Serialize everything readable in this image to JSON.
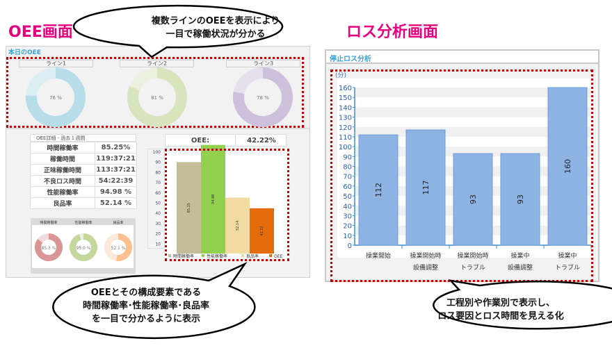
{
  "headings": {
    "left": "OEE画面",
    "right": "ロス分析画面"
  },
  "oee_screen": {
    "today_label": "本日のOEE",
    "lines": [
      {
        "name": "ライン1",
        "value": 76,
        "label": "76 %",
        "color": "#b6dde8",
        "light": "#dbeef4"
      },
      {
        "name": "ライン2",
        "value": 81,
        "label": "81 %",
        "color": "#d7e4bd",
        "light": "#ebf1de"
      },
      {
        "name": "ライン3",
        "value": 78,
        "label": "78 %",
        "color": "#ccc0da",
        "light": "#e6e0ec"
      }
    ],
    "detail_title": "OEE詳細 - 過去１週間",
    "detail_rows": [
      {
        "label": "時間稼働率",
        "value": "85.25%"
      },
      {
        "label": "稼働時間",
        "value": "119:37:21"
      },
      {
        "label": "正味稼働時間",
        "value": "113:37:21"
      },
      {
        "label": "不良ロス時間",
        "value": "54:22:39"
      },
      {
        "label": "性能稼働率",
        "value": "94.98 %"
      },
      {
        "label": "良品率",
        "value": "52.14 %"
      }
    ],
    "oee_label": "OEE:",
    "oee_value": "42.22%",
    "small_donuts": [
      {
        "name": "時間稼働率",
        "value": 85.3,
        "label": "85.3 %",
        "color": "#d99694",
        "light": "#f2dcdb"
      },
      {
        "name": "性能稼働率",
        "value": 95.0,
        "label": "95.0 %",
        "color": "#c3d69b",
        "light": "#ebf1de"
      },
      {
        "name": "良品率",
        "value": 52.1,
        "label": "52.1 %",
        "color": "#fac090",
        "light": "#fde9d9"
      }
    ]
  },
  "chart_data": [
    {
      "type": "bar",
      "categories": [
        "時間稼働率",
        "性能稼働率",
        "良品率",
        "OEE"
      ],
      "values": [
        85.25,
        94.98,
        52.14,
        42.22
      ],
      "data_labels": [
        "85.25",
        "94.98",
        "52.14",
        "42.22"
      ],
      "colors": [
        "#c4bd97",
        "#92d050",
        "#f0dca0",
        "#e46c0a"
      ],
      "yticks": [
        10,
        20,
        30,
        40,
        50,
        60,
        70,
        80,
        90,
        100
      ],
      "ylim": [
        0,
        100
      ],
      "legend": "bottom"
    },
    {
      "type": "bar",
      "title": "停止ロス分析",
      "ylabel": "(分)",
      "categories": [
        [
          "操業開始",
          ""
        ],
        [
          "操業開始時",
          "設備調整"
        ],
        [
          "操業開始時",
          "トラブル"
        ],
        [
          "操業中",
          "設備調整"
        ],
        [
          "操業中",
          "トラブル"
        ]
      ],
      "values": [
        112,
        117,
        93,
        93,
        160
      ],
      "yticks": [
        0,
        10,
        20,
        30,
        40,
        50,
        60,
        70,
        80,
        90,
        100,
        110,
        120,
        130,
        140,
        150,
        160
      ],
      "ylim": [
        0,
        160
      ],
      "color": "#8db3e2",
      "grid": "banded"
    }
  ],
  "callouts": [
    {
      "lines": [
        "複数ラインのOEEを表示により",
        "一目で稼働状況が分かる"
      ]
    },
    {
      "lines": [
        "OEEとその構成要素である",
        "時間稼働率･性能稼働率･良品率",
        "を一目で分かるように表示"
      ]
    },
    {
      "lines": [
        "工程別や作業別で表示し、",
        "ロス要因とロス時間を見える化"
      ]
    }
  ]
}
